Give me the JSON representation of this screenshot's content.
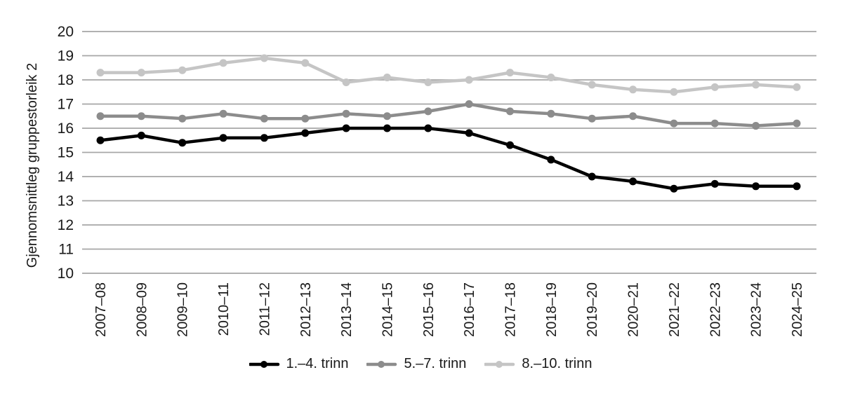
{
  "chart_data": {
    "type": "line",
    "title": "",
    "ylabel": "Gjennomsnittleg gruppestorleik 2",
    "xlabel": "",
    "ylim": [
      10,
      20
    ],
    "yticks": [
      10,
      11,
      12,
      13,
      14,
      15,
      16,
      17,
      18,
      19,
      20
    ],
    "grid": "horizontal-only",
    "grid_color": "#a6a6a6",
    "text_color": "#1a1a1a",
    "legend_position": "bottom-center",
    "marker": "filled-circle",
    "categories": [
      "2007–08",
      "2008–09",
      "2009–10",
      "2010–11",
      "2011–12",
      "2012–13",
      "2013–14",
      "2014–15",
      "2015–16",
      "2016–17",
      "2017–18",
      "2018–19",
      "2019–20",
      "2020–21",
      "2021–22",
      "2022–23",
      "2023–24",
      "2024–25"
    ],
    "series": [
      {
        "name": "1.–4. trinn",
        "color": "#000000",
        "values": [
          15.5,
          15.7,
          15.4,
          15.6,
          15.6,
          15.8,
          16.0,
          16.0,
          16.0,
          15.8,
          15.3,
          14.7,
          14.0,
          13.8,
          13.5,
          13.7,
          13.6,
          13.6
        ]
      },
      {
        "name": "5.–7. trinn",
        "color": "#8c8c8c",
        "values": [
          16.5,
          16.5,
          16.4,
          16.6,
          16.4,
          16.4,
          16.6,
          16.5,
          16.7,
          17.0,
          16.7,
          16.6,
          16.4,
          16.5,
          16.2,
          16.2,
          16.1,
          16.2
        ]
      },
      {
        "name": "8.–10. trinn",
        "color": "#c5c5c5",
        "values": [
          18.3,
          18.3,
          18.4,
          18.7,
          18.9,
          18.7,
          17.9,
          18.1,
          17.9,
          18.0,
          18.3,
          18.1,
          17.8,
          17.6,
          17.5,
          17.7,
          17.8,
          17.7
        ]
      }
    ]
  }
}
